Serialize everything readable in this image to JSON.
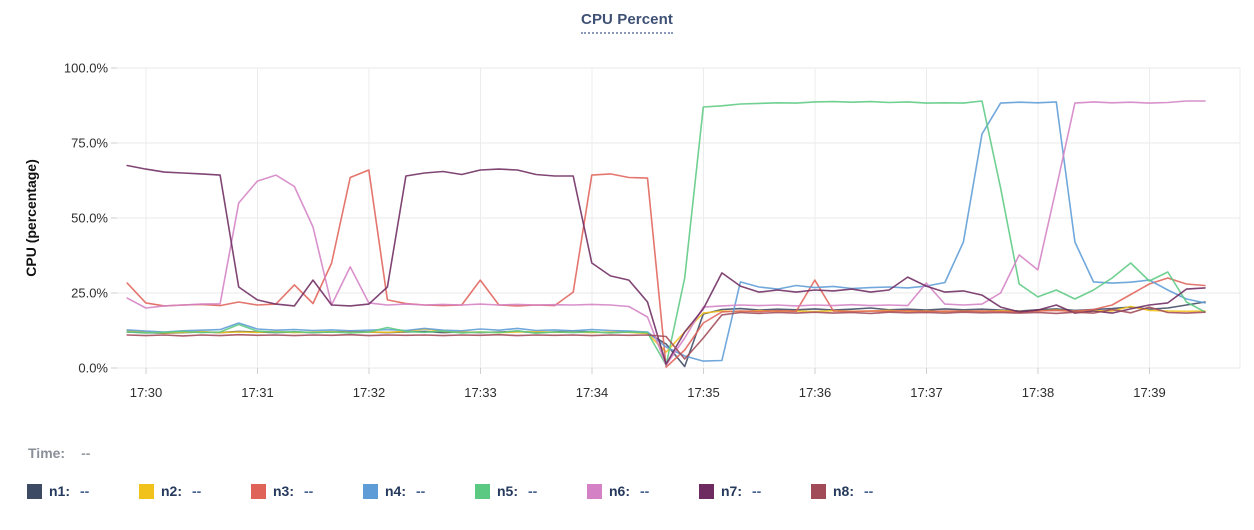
{
  "header": {
    "title": "CPU Percent"
  },
  "footer": {
    "time_label": "Time:",
    "time_value": "--"
  },
  "chart_data": {
    "type": "line",
    "title": "CPU Percent",
    "xlabel": "",
    "ylabel": "CPU (percentage)",
    "ylim": [
      0,
      100
    ],
    "grid": true,
    "legend_position": "bottom",
    "y_ticks": [
      "100.0%",
      "75.0%",
      "50.0%",
      "25.0%",
      "0.0%"
    ],
    "y_tick_values": [
      100,
      75,
      50,
      25,
      0
    ],
    "x_ticks": [
      "17:30",
      "17:31",
      "17:32",
      "17:33",
      "17:34",
      "17:35",
      "17:36",
      "17:37",
      "17:38",
      "17:39"
    ],
    "sample_interval_seconds": 10,
    "x_times": [
      "17:29:50",
      "17:30:00",
      "17:30:10",
      "17:30:20",
      "17:30:30",
      "17:30:40",
      "17:30:50",
      "17:31:00",
      "17:31:10",
      "17:31:20",
      "17:31:30",
      "17:31:40",
      "17:31:50",
      "17:32:00",
      "17:32:10",
      "17:32:20",
      "17:32:30",
      "17:32:40",
      "17:32:50",
      "17:33:00",
      "17:33:10",
      "17:33:20",
      "17:33:30",
      "17:33:40",
      "17:33:50",
      "17:34:00",
      "17:34:10",
      "17:34:20",
      "17:34:30",
      "17:34:40",
      "17:34:50",
      "17:35:00",
      "17:35:10",
      "17:35:20",
      "17:35:30",
      "17:35:40",
      "17:35:50",
      "17:36:00",
      "17:36:10",
      "17:36:20",
      "17:36:30",
      "17:36:40",
      "17:36:50",
      "17:37:00",
      "17:37:10",
      "17:37:20",
      "17:37:30",
      "17:37:40",
      "17:37:50",
      "17:38:00",
      "17:38:10",
      "17:38:20",
      "17:38:30",
      "17:38:40",
      "17:38:50",
      "17:39:00",
      "17:39:10",
      "17:39:20",
      "17:39:30"
    ],
    "series": [
      {
        "name": "n1",
        "legend_label": "n1:",
        "legend_value": "--",
        "color": "#3d4a63",
        "values": [
          12,
          11.8,
          11.6,
          11.8,
          12,
          11.8,
          12.2,
          12,
          11.8,
          12,
          11.8,
          12,
          12.2,
          12,
          11.8,
          12,
          12.2,
          11.8,
          12,
          11.8,
          12,
          12.2,
          11.8,
          12,
          12.3,
          12,
          11.8,
          12,
          11.7,
          8,
          0.5,
          18,
          19.5,
          19.8,
          19.3,
          19.6,
          19.4,
          19.7,
          19.3,
          19.6,
          20,
          19.4,
          19.6,
          19.3,
          19.7,
          19.4,
          19.6,
          19.3,
          19,
          19.4,
          19.7,
          19.2,
          19.5,
          19.8,
          20.3,
          19.6,
          20,
          21,
          22
        ]
      },
      {
        "name": "n2",
        "legend_label": "n2:",
        "legend_value": "--",
        "color": "#f2c21c",
        "values": [
          12.5,
          12,
          11.7,
          11.9,
          12.1,
          11.8,
          12,
          11.9,
          12.2,
          11.8,
          12,
          12.1,
          11.8,
          12,
          11.9,
          12.2,
          13,
          12.2,
          11.9,
          12,
          11.8,
          12,
          12.1,
          11.9,
          12,
          11.8,
          12,
          11.9,
          11.5,
          5.3,
          12,
          18.3,
          19,
          18.8,
          19.1,
          18.9,
          19,
          18.8,
          19.1,
          18.9,
          19,
          19.2,
          18.9,
          19,
          18.8,
          19,
          18.9,
          19.1,
          18.8,
          19,
          19.3,
          18.9,
          19.1,
          19,
          20.5,
          19.2,
          19,
          18.9,
          19
        ]
      },
      {
        "name": "n3",
        "legend_label": "n3:",
        "legend_value": "--",
        "color": "#e0635a",
        "values": [
          28.3,
          21.7,
          20.7,
          21,
          21.2,
          20.8,
          22,
          21,
          21.3,
          27.7,
          21.5,
          35,
          63.5,
          66,
          22.7,
          21.5,
          21,
          20.8,
          21,
          29.3,
          21,
          20.7,
          21,
          20.8,
          25.3,
          64.3,
          64.7,
          63.5,
          63.3,
          0.3,
          6,
          15,
          18.7,
          19,
          18.8,
          19.1,
          18.9,
          29.3,
          19,
          18.8,
          19,
          18.9,
          19.1,
          18.8,
          19,
          18.9,
          19,
          18.8,
          18.7,
          19,
          19.2,
          18.9,
          19.5,
          21,
          24.5,
          28,
          30,
          28,
          27.5
        ]
      },
      {
        "name": "n4",
        "legend_label": "n4:",
        "legend_value": "--",
        "color": "#5d9cd6",
        "values": [
          12.7,
          12.3,
          12,
          12.4,
          12.6,
          12.8,
          15,
          13,
          12.6,
          12.8,
          12.5,
          12.7,
          12.4,
          12.6,
          12.8,
          12.5,
          13.2,
          12.6,
          12.4,
          13,
          12.6,
          13.2,
          12.5,
          12.7,
          12.4,
          12.8,
          12.5,
          12.3,
          12,
          7,
          4,
          2.3,
          2.5,
          28.7,
          27,
          26.3,
          27.5,
          26.8,
          27.2,
          26.5,
          26.8,
          27,
          26.7,
          27.3,
          28.5,
          42,
          78,
          88.3,
          88.6,
          88.4,
          88.7,
          42,
          28.7,
          28.3,
          28.6,
          29.3,
          26,
          23,
          21.7
        ]
      },
      {
        "name": "n5",
        "legend_label": "n5:",
        "legend_value": "--",
        "color": "#5cc982",
        "values": [
          12,
          11.7,
          11.9,
          12.2,
          11.8,
          12,
          14.5,
          12.3,
          11.9,
          12.1,
          11.8,
          12,
          11.7,
          12,
          13.5,
          12.2,
          11.9,
          12.3,
          11.7,
          12,
          11.8,
          12.4,
          11.6,
          12,
          11.8,
          12.1,
          11.7,
          12,
          11.8,
          1,
          30,
          87,
          87.4,
          88,
          88.2,
          88.4,
          88.3,
          88.7,
          88.8,
          88.6,
          88.8,
          88.5,
          88.7,
          88.3,
          88.4,
          88.3,
          89,
          60,
          28,
          23.7,
          26,
          23,
          26,
          30,
          35,
          29,
          32,
          22,
          18.7
        ]
      },
      {
        "name": "n6",
        "legend_label": "n6:",
        "legend_value": "--",
        "color": "#d482c5",
        "values": [
          23.3,
          20,
          20.7,
          21,
          21.3,
          21.4,
          55,
          62.3,
          64.3,
          60.5,
          47,
          21,
          33.7,
          21.7,
          21,
          21.3,
          21,
          21.2,
          21,
          21.3,
          21,
          21.2,
          21,
          21.1,
          21,
          21.2,
          21,
          20.5,
          17,
          1,
          10,
          20.3,
          20.7,
          21,
          20.8,
          21,
          20.7,
          21,
          20.8,
          21.1,
          20.8,
          21,
          20.8,
          28.3,
          21.3,
          21,
          21.3,
          25,
          37.7,
          32.7,
          60,
          88.3,
          88.7,
          88.4,
          88.6,
          88.3,
          88.5,
          89,
          89
        ]
      },
      {
        "name": "n7",
        "legend_label": "n7:",
        "legend_value": "--",
        "color": "#6e2b61",
        "values": [
          67.5,
          66.3,
          65.3,
          65,
          64.7,
          64.3,
          27,
          22.7,
          21.3,
          20.7,
          29.3,
          21,
          20.7,
          21.3,
          27,
          64,
          65,
          65.5,
          64.5,
          66,
          66.3,
          66,
          64.5,
          64,
          64,
          35,
          30.7,
          29.3,
          22,
          1.3,
          12,
          19.7,
          31.7,
          27.3,
          25.3,
          26,
          25.3,
          26,
          25.7,
          26.3,
          25.3,
          26,
          30.3,
          27.3,
          25.3,
          25.7,
          24.3,
          20.3,
          18.7,
          19.3,
          21,
          18.3,
          19,
          18.3,
          19.7,
          21,
          21.7,
          26.3,
          26.7
        ]
      },
      {
        "name": "n8",
        "legend_label": "n8:",
        "legend_value": "--",
        "color": "#a14a58",
        "values": [
          11,
          10.8,
          11,
          10.7,
          11,
          10.8,
          11.1,
          10.9,
          11,
          10.8,
          11,
          10.9,
          11.1,
          10.8,
          11,
          10.9,
          11,
          10.8,
          11,
          10.9,
          11.1,
          10.8,
          11,
          10.9,
          11,
          10.8,
          11,
          10.9,
          11,
          10.5,
          3,
          10,
          17.7,
          18.5,
          18.2,
          18.5,
          18.3,
          18.6,
          18.3,
          18.5,
          18.2,
          18.6,
          18.4,
          18.5,
          18.3,
          18.6,
          18.4,
          18.5,
          18.3,
          18.5,
          18.2,
          18.6,
          18.3,
          19.5,
          18.4,
          20.3,
          18.5,
          18.3,
          18.6
        ]
      }
    ]
  }
}
